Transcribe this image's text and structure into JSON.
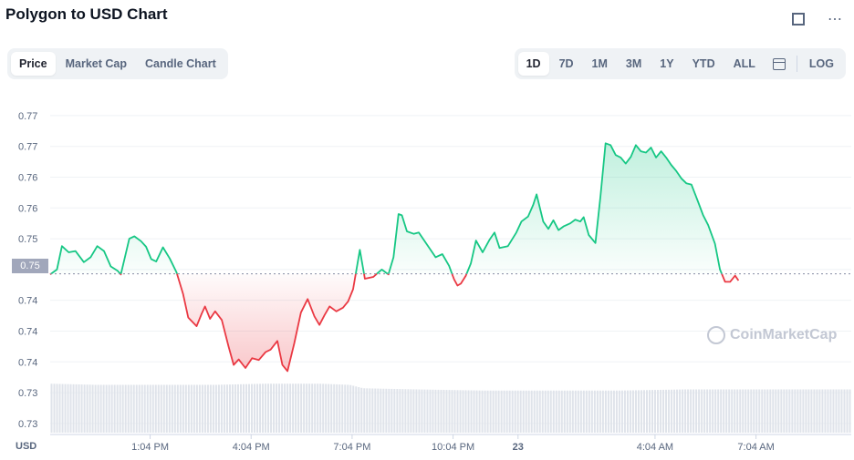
{
  "header": {
    "title": "Polygon to USD Chart",
    "fullscreen_icon": "fullscreen-icon",
    "more_icon": "more-icon",
    "more_glyph": "⋯"
  },
  "chart_tabs": [
    {
      "label": "Price",
      "active": true
    },
    {
      "label": "Market Cap",
      "active": false
    },
    {
      "label": "Candle Chart",
      "active": false
    }
  ],
  "ranges": [
    {
      "label": "1D",
      "active": true
    },
    {
      "label": "7D",
      "active": false
    },
    {
      "label": "1M",
      "active": false
    },
    {
      "label": "3M",
      "active": false
    },
    {
      "label": "1Y",
      "active": false
    },
    {
      "label": "YTD",
      "active": false
    },
    {
      "label": "ALL",
      "active": false
    }
  ],
  "calendar_icon": "calendar-icon",
  "log_label": "LOG",
  "current_price_label": "0.75",
  "currency_label": "USD",
  "watermark": "CoinMarketCap",
  "colors": {
    "up": "#16c784",
    "down": "#ea3943",
    "volume": "#dfe3ea",
    "grid": "#eff2f5"
  },
  "chart_data": {
    "type": "line",
    "title": "Polygon to USD Chart",
    "baseline": 0.7513,
    "ylim": [
      0.7255,
      0.7795
    ],
    "y_tick_values": [
      0.727,
      0.732,
      0.737,
      0.742,
      0.747,
      0.752,
      0.757,
      0.762,
      0.767,
      0.772,
      0.777
    ],
    "y_tick_labels": [
      "0.73",
      "0.73",
      "0.74",
      "0.74",
      "0.74",
      "0.75",
      "0.75",
      "0.76",
      "0.76",
      "0.77",
      "0.77"
    ],
    "x_ticks": [
      {
        "t": 1.07,
        "label": "1:04 PM"
      },
      {
        "t": 4.07,
        "label": "4:04 PM"
      },
      {
        "t": 7.07,
        "label": "7:04 PM"
      },
      {
        "t": 10.07,
        "label": "10:04 PM"
      },
      {
        "t": 12.0,
        "label": "23"
      },
      {
        "t": 16.07,
        "label": "4:04 AM"
      },
      {
        "t": 19.07,
        "label": "7:04 AM"
      }
    ],
    "x_range": [
      -1.9,
      21.9
    ],
    "price": [
      [
        -1.9,
        0.7512
      ],
      [
        -1.7,
        0.752
      ],
      [
        -1.55,
        0.7558
      ],
      [
        -1.35,
        0.7548
      ],
      [
        -1.15,
        0.755
      ],
      [
        -0.9,
        0.7532
      ],
      [
        -0.7,
        0.754
      ],
      [
        -0.5,
        0.7558
      ],
      [
        -0.3,
        0.755
      ],
      [
        -0.1,
        0.7525
      ],
      [
        0.1,
        0.7518
      ],
      [
        0.2,
        0.7512
      ],
      [
        0.45,
        0.757
      ],
      [
        0.6,
        0.7574
      ],
      [
        0.8,
        0.7566
      ],
      [
        0.95,
        0.7557
      ],
      [
        1.1,
        0.7537
      ],
      [
        1.25,
        0.7533
      ],
      [
        1.45,
        0.7556
      ],
      [
        1.65,
        0.7538
      ],
      [
        1.85,
        0.7516
      ],
      [
        2.05,
        0.748
      ],
      [
        2.2,
        0.7442
      ],
      [
        2.45,
        0.7428
      ],
      [
        2.6,
        0.7448
      ],
      [
        2.7,
        0.746
      ],
      [
        2.85,
        0.744
      ],
      [
        3.0,
        0.7452
      ],
      [
        3.2,
        0.7438
      ],
      [
        3.4,
        0.7395
      ],
      [
        3.55,
        0.7365
      ],
      [
        3.7,
        0.7374
      ],
      [
        3.9,
        0.736
      ],
      [
        4.1,
        0.7376
      ],
      [
        4.3,
        0.7373
      ],
      [
        4.5,
        0.7386
      ],
      [
        4.65,
        0.739
      ],
      [
        4.85,
        0.7404
      ],
      [
        5.0,
        0.7365
      ],
      [
        5.15,
        0.7355
      ],
      [
        5.35,
        0.74
      ],
      [
        5.55,
        0.745
      ],
      [
        5.75,
        0.7472
      ],
      [
        5.95,
        0.7444
      ],
      [
        6.1,
        0.743
      ],
      [
        6.25,
        0.7446
      ],
      [
        6.4,
        0.746
      ],
      [
        6.6,
        0.7452
      ],
      [
        6.8,
        0.7458
      ],
      [
        6.95,
        0.7468
      ],
      [
        7.1,
        0.7488
      ],
      [
        7.3,
        0.7552
      ],
      [
        7.45,
        0.7505
      ],
      [
        7.7,
        0.7508
      ],
      [
        7.95,
        0.752
      ],
      [
        8.15,
        0.7512
      ],
      [
        8.3,
        0.754
      ],
      [
        8.45,
        0.761
      ],
      [
        8.55,
        0.7608
      ],
      [
        8.7,
        0.7582
      ],
      [
        8.9,
        0.7578
      ],
      [
        9.05,
        0.758
      ],
      [
        9.2,
        0.7568
      ],
      [
        9.4,
        0.7552
      ],
      [
        9.55,
        0.754
      ],
      [
        9.75,
        0.7545
      ],
      [
        9.95,
        0.7526
      ],
      [
        10.1,
        0.7504
      ],
      [
        10.2,
        0.7494
      ],
      [
        10.3,
        0.7497
      ],
      [
        10.45,
        0.751
      ],
      [
        10.6,
        0.753
      ],
      [
        10.75,
        0.7567
      ],
      [
        10.95,
        0.7548
      ],
      [
        11.15,
        0.7568
      ],
      [
        11.3,
        0.758
      ],
      [
        11.45,
        0.7555
      ],
      [
        11.7,
        0.7558
      ],
      [
        11.95,
        0.758
      ],
      [
        12.1,
        0.7598
      ],
      [
        12.3,
        0.7606
      ],
      [
        12.45,
        0.7625
      ],
      [
        12.55,
        0.7642
      ],
      [
        12.75,
        0.7598
      ],
      [
        12.9,
        0.7586
      ],
      [
        13.05,
        0.76
      ],
      [
        13.2,
        0.7584
      ],
      [
        13.35,
        0.759
      ],
      [
        13.55,
        0.7595
      ],
      [
        13.7,
        0.7601
      ],
      [
        13.85,
        0.7598
      ],
      [
        13.95,
        0.7605
      ],
      [
        14.1,
        0.7576
      ],
      [
        14.3,
        0.7563
      ],
      [
        14.45,
        0.764
      ],
      [
        14.6,
        0.7725
      ],
      [
        14.75,
        0.7722
      ],
      [
        14.9,
        0.7706
      ],
      [
        15.05,
        0.7702
      ],
      [
        15.2,
        0.7692
      ],
      [
        15.35,
        0.7703
      ],
      [
        15.5,
        0.7722
      ],
      [
        15.65,
        0.7712
      ],
      [
        15.8,
        0.771
      ],
      [
        15.95,
        0.7718
      ],
      [
        16.1,
        0.7702
      ],
      [
        16.25,
        0.7712
      ],
      [
        16.4,
        0.7702
      ],
      [
        16.55,
        0.769
      ],
      [
        16.7,
        0.768
      ],
      [
        16.85,
        0.7668
      ],
      [
        17.0,
        0.766
      ],
      [
        17.15,
        0.7658
      ],
      [
        17.35,
        0.763
      ],
      [
        17.5,
        0.7608
      ],
      [
        17.65,
        0.7592
      ],
      [
        17.85,
        0.7562
      ],
      [
        18.0,
        0.752
      ],
      [
        18.15,
        0.75
      ],
      [
        18.3,
        0.75
      ],
      [
        18.45,
        0.751
      ],
      [
        18.55,
        0.7502
      ]
    ],
    "volume_levels": [
      [
        -1.9,
        0.43
      ],
      [
        -0.5,
        0.42
      ],
      [
        1.0,
        0.42
      ],
      [
        3.0,
        0.42
      ],
      [
        4.5,
        0.43
      ],
      [
        6.1,
        0.43
      ],
      [
        7.0,
        0.42
      ],
      [
        7.4,
        0.39
      ],
      [
        9.0,
        0.38
      ],
      [
        11.0,
        0.37
      ],
      [
        13.0,
        0.37
      ],
      [
        15.0,
        0.37
      ],
      [
        17.0,
        0.38
      ],
      [
        19.0,
        0.38
      ],
      [
        21.9,
        0.38
      ]
    ]
  }
}
